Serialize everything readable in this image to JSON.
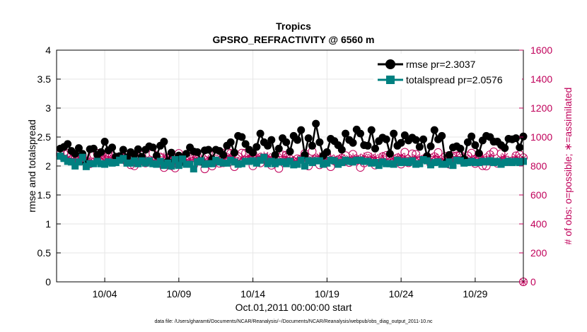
{
  "chart_data": {
    "type": "line",
    "title": "Tropics",
    "subtitle": "GPSRO_REFRACTIVITY @ 6560 m",
    "xlabel": "Oct.01,2011 00:00:00 start",
    "ylabel": "rmse and totalspread",
    "ylabel_right": "# of obs: o=possible; ∗=assimilated",
    "footnote": "data file: /Users/gharamti/Documents/NCAR/Reanalysis/~/Documents/NCAR/Reanalysis/webpub/obs_diag_output_2011-10.nc",
    "x_ticks": [
      "10/04",
      "10/09",
      "10/14",
      "10/19",
      "10/24",
      "10/29"
    ],
    "x_tick_days": [
      4,
      9,
      14,
      19,
      24,
      29
    ],
    "xlim": [
      0.75,
      32.25
    ],
    "y_ticks": [
      "0",
      "0.5",
      "1",
      "1.5",
      "2",
      "2.5",
      "3",
      "3.5",
      "4"
    ],
    "ylim": [
      0,
      4
    ],
    "y2_ticks": [
      "0",
      "200",
      "400",
      "600",
      "800",
      "1000",
      "1200",
      "1400",
      "1600"
    ],
    "y2lim": [
      0,
      1600
    ],
    "legend_position": "top-right",
    "time_step_days": 0.25,
    "start_day": 1,
    "series": [
      {
        "name": "rmse pr=2.3037",
        "axis": "left",
        "color": "#000000",
        "marker": "circle",
        "values": [
          2.3,
          2.33,
          2.38,
          2.26,
          2.21,
          2.31,
          2.21,
          2.04,
          2.29,
          2.3,
          2.19,
          2.24,
          2.42,
          2.27,
          2.32,
          2.16,
          2.17,
          2.28,
          2.15,
          2.24,
          2.2,
          2.29,
          2.16,
          2.28,
          2.34,
          2.32,
          2.18,
          2.35,
          2.42,
          2.08,
          2.23,
          2.11,
          2.18,
          2.07,
          2.21,
          2.32,
          2.25,
          2.24,
          2.08,
          2.27,
          2.28,
          2.12,
          2.28,
          2.26,
          2.19,
          2.35,
          2.41,
          2.23,
          2.52,
          2.5,
          2.38,
          2.28,
          2.23,
          2.33,
          2.56,
          2.41,
          2.35,
          2.45,
          2.19,
          2.3,
          2.48,
          2.41,
          2.25,
          2.52,
          2.45,
          2.62,
          2.19,
          2.48,
          2.35,
          2.73,
          2.41,
          2.18,
          2.24,
          2.47,
          2.43,
          2.36,
          2.28,
          2.56,
          2.45,
          2.4,
          2.63,
          2.56,
          2.36,
          2.35,
          2.62,
          2.3,
          2.43,
          2.49,
          2.46,
          2.21,
          2.56,
          2.35,
          2.4,
          2.53,
          2.44,
          2.49,
          2.45,
          2.33,
          2.46,
          2.17,
          2.34,
          2.62,
          2.46,
          2.52,
          2.05,
          2.19,
          2.32,
          2.34,
          2.3,
          2.12,
          2.41,
          2.51,
          2.36,
          2.22,
          2.44,
          2.52,
          2.5,
          2.42,
          2.42,
          2.36,
          2.31,
          2.47,
          2.46,
          2.48,
          2.32,
          2.51
        ]
      },
      {
        "name": "totalspread pr=2.0576",
        "axis": "left",
        "color": "#008080",
        "marker": "square",
        "values": [
          2.17,
          2.13,
          2.08,
          2.07,
          2.0,
          2.07,
          2.15,
          1.99,
          2.04,
          2.04,
          2.08,
          2.04,
          2.03,
          2.07,
          2.05,
          2.06,
          2.1,
          2.13,
          2.05,
          2.05,
          2.09,
          2.04,
          2.09,
          2.05,
          2.09,
          2.04,
          2.03,
          2.08,
          2.01,
          2.05,
          2.0,
          2.11,
          2.01,
          2.12,
          2.03,
          2.03,
          1.95,
          2.07,
          2.09,
          2.03,
          2.04,
          2.04,
          2.1,
          2.07,
          2.05,
          2.05,
          2.1,
          2.07,
          2.03,
          2.04,
          2.08,
          2.08,
          2.09,
          2.05,
          2.1,
          2.15,
          2.04,
          2.08,
          2.04,
          2.07,
          2.07,
          2.04,
          2.08,
          2.02,
          2.03,
          2.1,
          2.0,
          2.09,
          2.06,
          2.09,
          2.09,
          2.03,
          2.05,
          2.1,
          2.09,
          2.03,
          2.06,
          2.1,
          2.08,
          2.07,
          2.1,
          2.1,
          2.08,
          2.08,
          2.05,
          2.06,
          2.01,
          2.07,
          2.04,
          2.04,
          2.03,
          2.1,
          2.06,
          2.08,
          2.06,
          2.09,
          2.03,
          2.04,
          2.11,
          2.09,
          2.02,
          2.06,
          2.07,
          2.03,
          2.03,
          2.07,
          2.01,
          2.1,
          2.09,
          2.05,
          2.06,
          2.08,
          2.06,
          2.06,
          2.08,
          2.07,
          2.09,
          2.06,
          2.08,
          2.03,
          2.06,
          2.08,
          2.06,
          2.08,
          2.06,
          2.08
        ]
      },
      {
        "name": "# obs possible",
        "axis": "right",
        "color": "#c0005a",
        "marker": "open-circle",
        "values": [
          883,
          885,
          887,
          876,
          850,
          865,
          862,
          835,
          815,
          879,
          888,
          826,
          869,
          870,
          870,
          850,
          857,
          857,
          874,
          808,
          801,
          822,
          874,
          821,
          832,
          888,
          819,
          862,
          789,
          853,
          802,
          786,
          887,
          834,
          861,
          858,
          804,
          871,
          831,
          780,
          888,
          800,
          849,
          818,
          822,
          899,
          888,
          795,
          866,
          889,
          889,
          847,
          801,
          829,
          821,
          856,
          838,
          805,
          832,
          783,
          876,
          875,
          848,
          833,
          850,
          849,
          886,
          800,
          900,
          849,
          808,
          833,
          865,
          795,
          835,
          844,
          854,
          872,
          824,
          881,
          841,
          790,
          821,
          869,
          831,
          806,
          834,
          864,
          873,
          850,
          832,
          856,
          813,
          895,
          822,
          884,
          881,
          839,
          848,
          866,
          815,
          864,
          893,
          821,
          867,
          812,
          869,
          871,
          875,
          842,
          871,
          889,
          817,
          882,
          802,
          800,
          878,
          898,
          818,
          886,
          831,
          829,
          836,
          871,
          878,
          858
        ]
      },
      {
        "name": "# obs assimilated",
        "axis": "right",
        "color": "#c0005a",
        "marker": "asterisk",
        "values": [
          870,
          860,
          857,
          844,
          853,
          861,
          844,
          853,
          836,
          831,
          849,
          854,
          867,
          858,
          863,
          836,
          849,
          841,
          859,
          848,
          859,
          846,
          846,
          845,
          846,
          835,
          842,
          838,
          864,
          860,
          860,
          857,
          863,
          865,
          837,
          845,
          856,
          854,
          833,
          840,
          849,
          844,
          831,
          845,
          838,
          858,
          868,
          859,
          834,
          854,
          845,
          865,
          860,
          868,
          864,
          870,
          867,
          855,
          847,
          832,
          866,
          860,
          844,
          839,
          840,
          857,
          857,
          846,
          845,
          849,
          866,
          848,
          847,
          858,
          849,
          844,
          859,
          831,
          853,
          860,
          856,
          855,
          864,
          852,
          862,
          860,
          834,
          868,
          836,
          836,
          845,
          858,
          869,
          860,
          832,
          855,
          859,
          837,
          847,
          854,
          844,
          865,
          854,
          846,
          849,
          857,
          852,
          866,
          837,
          860,
          843,
          856,
          855,
          846,
          864,
          844,
          868,
          836,
          834,
          852,
          867,
          835,
          840,
          864,
          847,
          854
        ]
      }
    ]
  }
}
